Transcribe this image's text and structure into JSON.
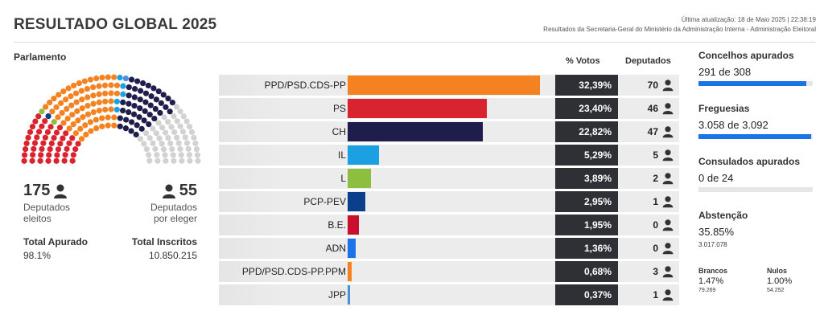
{
  "header": {
    "title": "RESULTADO GLOBAL 2025",
    "last_update": "Última atualização: 18 de Maio 2025 | 22:38:19",
    "source": "Resultados da Secretaria-Geral do Ministério da Administração Interna - Administração Eleitoral"
  },
  "parliament": {
    "title": "Parlamento",
    "elected": "175",
    "elected_label_1": "Deputados",
    "elected_label_2": "eleitos",
    "to_elect": "55",
    "to_elect_label_1": "Deputados",
    "to_elect_label_2": "por eleger",
    "total_counted_label": "Total Apurado",
    "total_counted_value": "98.1%",
    "total_registered_label": "Total Inscritos",
    "total_registered_value": "10.850.215",
    "seat_groups": [
      {
        "party": "PS",
        "seats": 46,
        "color": "#d9232e"
      },
      {
        "party": "L",
        "seats": 2,
        "color": "#8cbf3f"
      },
      {
        "party": "PCP-PEV",
        "seats": 1,
        "color": "#0a3f8c"
      },
      {
        "party": "PPD/PSD.CDS-PP",
        "seats": 73,
        "color": "#f58220"
      },
      {
        "party": "IL",
        "seats": 5,
        "color": "#1ba1e2"
      },
      {
        "party": "JPP",
        "seats": 1,
        "color": "#4a90d9"
      },
      {
        "party": "CH",
        "seats": 47,
        "color": "#1f1d4b"
      },
      {
        "party": "Por eleger",
        "seats": 55,
        "color": "#d2d2d2"
      }
    ]
  },
  "results": {
    "votes_header": "% Votos",
    "seats_header": "Deputados",
    "parties": [
      {
        "name": "PPD/PSD.CDS-PP",
        "pct": 32.39,
        "pct_label": "32,39%",
        "seats": "70",
        "color": "#f58220"
      },
      {
        "name": "PS",
        "pct": 23.4,
        "pct_label": "23,40%",
        "seats": "46",
        "color": "#d9232e"
      },
      {
        "name": "CH",
        "pct": 22.82,
        "pct_label": "22,82%",
        "seats": "47",
        "color": "#1f1d4b"
      },
      {
        "name": "IL",
        "pct": 5.29,
        "pct_label": "5,29%",
        "seats": "5",
        "color": "#1ba1e2"
      },
      {
        "name": "L",
        "pct": 3.89,
        "pct_label": "3,89%",
        "seats": "2",
        "color": "#8cbf3f"
      },
      {
        "name": "PCP-PEV",
        "pct": 2.95,
        "pct_label": "2,95%",
        "seats": "1",
        "color": "#0a3f8c"
      },
      {
        "name": "B.E.",
        "pct": 1.95,
        "pct_label": "1,95%",
        "seats": "0",
        "color": "#c8102e"
      },
      {
        "name": "ADN",
        "pct": 1.36,
        "pct_label": "1,36%",
        "seats": "0",
        "color": "#1a73e8"
      },
      {
        "name": "PPD/PSD.CDS-PP.PPM",
        "pct": 0.68,
        "pct_label": "0,68%",
        "seats": "3",
        "color": "#f58220"
      },
      {
        "name": "JPP",
        "pct": 0.37,
        "pct_label": "0,37%",
        "seats": "1",
        "color": "#4a90d9"
      }
    ]
  },
  "stats": {
    "councils_label": "Concelhos apurados",
    "councils_value": "291 de 308",
    "councils_fraction": 0.945,
    "parishes_label": "Freguesias",
    "parishes_value": "3.058 de 3.092",
    "parishes_fraction": 0.989,
    "consulates_label": "Consulados apurados",
    "consulates_value": "0 de 24",
    "consulates_fraction": 0,
    "abstention_label": "Abstenção",
    "abstention_value": "35.85%",
    "abstention_count": "3.017.078",
    "blank_label": "Brancos",
    "blank_value": "1.47%",
    "blank_count": "79.269",
    "null_label": "Nulos",
    "null_value": "1.00%",
    "null_count": "54.252"
  },
  "colors": {
    "accent": "#1a73e8",
    "dark_box": "#2f3035"
  }
}
